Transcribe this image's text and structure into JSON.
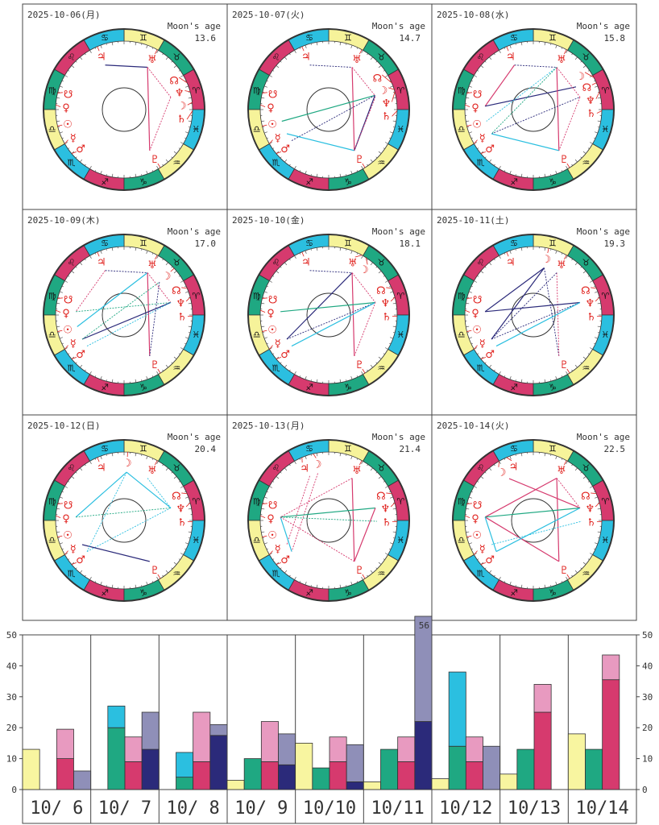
{
  "colors": {
    "fire": "#d63a6e",
    "earth": "#1fa882",
    "air": "#f6f39a",
    "water": "#2bbfe0",
    "navy": "#2b2a7a",
    "red": "#d63a6e",
    "pink": "#e89ac0",
    "cyan": "#2bbfe0",
    "green": "#1fa882",
    "yellow": "#f8f5a0",
    "lavender": "#8f8fb8",
    "planet": "#e0201c"
  },
  "moon_age_label": "Moon's age",
  "signs": [
    "♈",
    "♉",
    "♊",
    "♋",
    "♌",
    "♍",
    "♎",
    "♏",
    "♐",
    "♑",
    "♒",
    "♓"
  ],
  "planet_glyphs": {
    "Su": "☉",
    "Mo": "☽",
    "Me": "☿",
    "Ve": "♀",
    "Ma": "♂",
    "Ju": "♃",
    "Sa": "♄",
    "Ur": "♅",
    "Ne": "♆",
    "Pl": "♇",
    "Nn": "☊",
    "Sn": "☋"
  },
  "planet_display_angles": {
    "Su": 194,
    "Me": 210,
    "Ve": 176,
    "Ma": 220,
    "Ju": 113,
    "Sa": 359,
    "Ur": 61,
    "Ne": 15,
    "Pl": 302,
    "Nn": 23,
    "Sn": 166
  },
  "charts": [
    {
      "date": "2025-10-06(月)",
      "moon_age": "13.6",
      "moon_angle": 6,
      "aspects": [
        [
          "Ju",
          "Ur",
          "navy",
          0
        ],
        [
          "Ur",
          "Pl",
          "red",
          0
        ],
        [
          "Ur",
          "Ne",
          "red",
          1
        ],
        [
          "Ne",
          "Pl",
          "red",
          1
        ]
      ]
    },
    {
      "date": "2025-10-07(火)",
      "moon_age": "14.7",
      "moon_angle": 17,
      "aspects": [
        [
          "Ju",
          "Ur",
          "navy",
          1
        ],
        [
          "Ur",
          "Pl",
          "red",
          0
        ],
        [
          "Ur",
          "Mo",
          "red",
          1
        ],
        [
          "Su",
          "Mo",
          "green",
          0
        ],
        [
          "Ma",
          "Mo",
          "navy",
          1
        ],
        [
          "Me",
          "Pl",
          "cyan",
          0
        ],
        [
          "Pl",
          "Mo",
          "navy",
          0
        ],
        [
          "Pl",
          "Ne",
          "red",
          1
        ]
      ]
    },
    {
      "date": "2025-10-08(水)",
      "moon_age": "15.8",
      "moon_angle": 28,
      "aspects": [
        [
          "Ju",
          "Ur",
          "navy",
          1
        ],
        [
          "Ju",
          "Ve",
          "red",
          0
        ],
        [
          "Ve",
          "Mo",
          "navy",
          0
        ],
        [
          "Ur",
          "Pl",
          "red",
          0
        ],
        [
          "Ur",
          "Su",
          "cyan",
          1
        ],
        [
          "Ur",
          "Me",
          "green",
          1
        ],
        [
          "Me",
          "Ne",
          "navy",
          1
        ],
        [
          "Me",
          "Pl",
          "cyan",
          0
        ],
        [
          "Ur",
          "Ne",
          "red",
          1
        ],
        [
          "Ne",
          "Pl",
          "red",
          1
        ]
      ]
    },
    {
      "date": "2025-10-09(木)",
      "moon_age": "17.0",
      "moon_angle": 43,
      "aspects": [
        [
          "Ju",
          "Ur",
          "navy",
          1
        ],
        [
          "Ju",
          "Ve",
          "red",
          1
        ],
        [
          "Ve",
          "Ne",
          "green",
          1
        ],
        [
          "Ur",
          "Su",
          "cyan",
          0
        ],
        [
          "Ur",
          "Pl",
          "red",
          0
        ],
        [
          "Ur",
          "Ne",
          "red",
          1
        ],
        [
          "Me",
          "Ne",
          "navy",
          0
        ],
        [
          "Me",
          "Mo",
          "green",
          1
        ],
        [
          "Ma",
          "Ne",
          "cyan",
          1
        ],
        [
          "Mo",
          "Pl",
          "navy",
          1
        ]
      ]
    },
    {
      "date": "2025-10-10(金)",
      "moon_age": "18.1",
      "moon_angle": 57,
      "aspects": [
        [
          "Ju",
          "Ur",
          "navy",
          1
        ],
        [
          "Ur",
          "Me",
          "navy",
          0
        ],
        [
          "Ur",
          "Pl",
          "red",
          0
        ],
        [
          "Ur",
          "Ne",
          "red",
          1
        ],
        [
          "Ve",
          "Ne",
          "green",
          0
        ],
        [
          "Me",
          "Ne",
          "navy",
          1
        ],
        [
          "Ma",
          "Ne",
          "cyan",
          0
        ],
        [
          "Pl",
          "Ne",
          "red",
          1
        ]
      ]
    },
    {
      "date": "2025-10-11(土)",
      "moon_age": "19.3",
      "moon_angle": 77,
      "aspects": [
        [
          "Mo",
          "Ve",
          "navy",
          0
        ],
        [
          "Mo",
          "Me",
          "navy",
          0
        ],
        [
          "Mo",
          "Pl",
          "navy",
          1
        ],
        [
          "Ur",
          "Pl",
          "red",
          1
        ],
        [
          "Ve",
          "Ne",
          "navy",
          0
        ],
        [
          "Me",
          "Ne",
          "navy",
          1
        ],
        [
          "Ma",
          "Ne",
          "cyan",
          0
        ],
        [
          "Ur",
          "Me",
          "navy",
          1
        ]
      ]
    },
    {
      "date": "2025-10-12(日)",
      "moon_age": "20.4",
      "moon_angle": 87,
      "aspects": [
        [
          "Mo",
          "Ve",
          "cyan",
          0
        ],
        [
          "Mo",
          "Ne",
          "cyan",
          0
        ],
        [
          "Ve",
          "Ne",
          "green",
          1
        ],
        [
          "Ma",
          "Ne",
          "cyan",
          1
        ],
        [
          "Me",
          "Pl",
          "navy",
          0
        ],
        [
          "Mo",
          "Ma",
          "cyan",
          1
        ],
        [
          "Ur",
          "Ne",
          "cyan",
          1
        ]
      ]
    },
    {
      "date": "2025-10-13(月)",
      "moon_age": "21.4",
      "moon_angle": 103,
      "aspects": [
        [
          "Mo",
          "Ma",
          "red",
          1
        ],
        [
          "Ju",
          "Me",
          "red",
          1
        ],
        [
          "Ur",
          "Ve",
          "red",
          1
        ],
        [
          "Ur",
          "Pl",
          "red",
          0
        ],
        [
          "Ve",
          "Ne",
          "green",
          0
        ],
        [
          "Ve",
          "Sa",
          "green",
          1
        ],
        [
          "Ve",
          "Ma",
          "cyan",
          0
        ],
        [
          "Ve",
          "Pl",
          "red",
          1
        ],
        [
          "Pl",
          "Ne",
          "red",
          0
        ]
      ]
    },
    {
      "date": "2025-10-14(火)",
      "moon_age": "22.5",
      "moon_angle": 120,
      "aspects": [
        [
          "Mo",
          "Ne",
          "red",
          0
        ],
        [
          "Ur",
          "Ve",
          "red",
          0
        ],
        [
          "Ur",
          "Pl",
          "red",
          0
        ],
        [
          "Ve",
          "Pl",
          "red",
          0
        ],
        [
          "Ve",
          "Ne",
          "green",
          0
        ],
        [
          "Ve",
          "Ma",
          "cyan",
          0
        ],
        [
          "Ma",
          "Ne",
          "cyan",
          0
        ],
        [
          "Me",
          "Sa",
          "cyan",
          1
        ],
        [
          "Ur",
          "Ne",
          "red",
          1
        ]
      ]
    }
  ],
  "chart_data": {
    "type": "bar",
    "categories": [
      "10/ 6",
      "10/ 7",
      "10/ 8",
      "10/ 9",
      "10/10",
      "10/11",
      "10/12",
      "10/13",
      "10/14"
    ],
    "ylim": [
      0,
      50
    ],
    "yticks": [
      "0",
      "10",
      "20",
      "30",
      "40",
      "50"
    ],
    "grid": false,
    "series": [
      {
        "slot": 0,
        "color": "yellow",
        "values": [
          13,
          0,
          0,
          3,
          15,
          2.5,
          3.5,
          5,
          18
        ]
      },
      {
        "slot": 1,
        "color": "green",
        "values": [
          0,
          20,
          4,
          10,
          7,
          13,
          14,
          13,
          13
        ]
      },
      {
        "slot": 1,
        "color": "cyan",
        "stacked_total": [
          0,
          27,
          12,
          10,
          7,
          13,
          38,
          13,
          13
        ]
      },
      {
        "slot": 2,
        "color": "red",
        "values": [
          10,
          9,
          9,
          9,
          9,
          9,
          9,
          25,
          35.5
        ]
      },
      {
        "slot": 2,
        "color": "pink",
        "stacked_total": [
          19.5,
          17,
          25,
          22,
          17,
          17,
          17,
          34,
          43.5
        ]
      },
      {
        "slot": 3,
        "color": "navy",
        "values": [
          0,
          13,
          17.5,
          8,
          2.5,
          22,
          0,
          0,
          0
        ]
      },
      {
        "slot": 3,
        "color": "lavender",
        "stacked_total": [
          6,
          25,
          21,
          18,
          14.5,
          56,
          14,
          0,
          0
        ]
      }
    ],
    "overflow_label": "56"
  }
}
